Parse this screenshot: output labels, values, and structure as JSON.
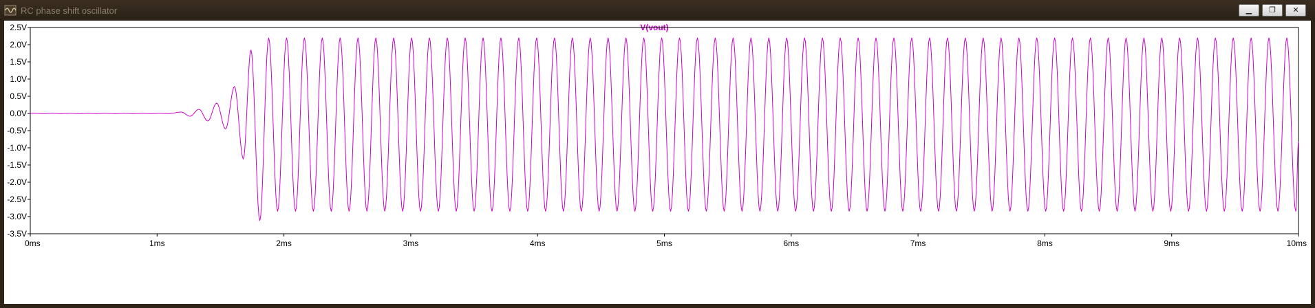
{
  "window": {
    "title": "RC phase shift oscillator",
    "minimize_icon": "minimize-icon",
    "restore_icon": "restore-icon",
    "close_icon": "close-icon",
    "app_icon": "waveform-icon"
  },
  "chart_data": {
    "type": "line",
    "title": "V(vout)",
    "title_color": "#cc00cc",
    "xlabel": "",
    "ylabel": "",
    "xlim_ms": [
      0,
      10
    ],
    "ylim_V": [
      -3.5,
      2.5
    ],
    "x_ticks": [
      "0ms",
      "1ms",
      "2ms",
      "3ms",
      "4ms",
      "5ms",
      "6ms",
      "7ms",
      "8ms",
      "9ms",
      "10ms"
    ],
    "y_ticks": [
      "2.5V",
      "2.0V",
      "1.5V",
      "1.0V",
      "0.5V",
      "0.0V",
      "-0.5V",
      "-1.0V",
      "-1.5V",
      "-2.0V",
      "-2.5V",
      "-3.0V",
      "-3.5V"
    ],
    "grid": false,
    "series": [
      {
        "name": "V(vout)",
        "color": "#cc00cc",
        "frequency_kHz": 7.1,
        "steady_max_V": 2.2,
        "steady_min_V": -2.85,
        "startup_peaks": [
          {
            "t_ms": 1.19,
            "v": 0.04
          },
          {
            "t_ms": 1.26,
            "v": -0.08
          },
          {
            "t_ms": 1.33,
            "v": 0.12
          },
          {
            "t_ms": 1.4,
            "v": -0.22
          },
          {
            "t_ms": 1.47,
            "v": 0.3
          },
          {
            "t_ms": 1.54,
            "v": -0.45
          },
          {
            "t_ms": 1.61,
            "v": 0.78
          },
          {
            "t_ms": 1.68,
            "v": -1.32
          },
          {
            "t_ms": 1.74,
            "v": 1.85
          },
          {
            "t_ms": 1.81,
            "v": -3.12
          },
          {
            "t_ms": 1.88,
            "v": 2.2
          }
        ],
        "end_value_V": -0.82
      }
    ]
  }
}
